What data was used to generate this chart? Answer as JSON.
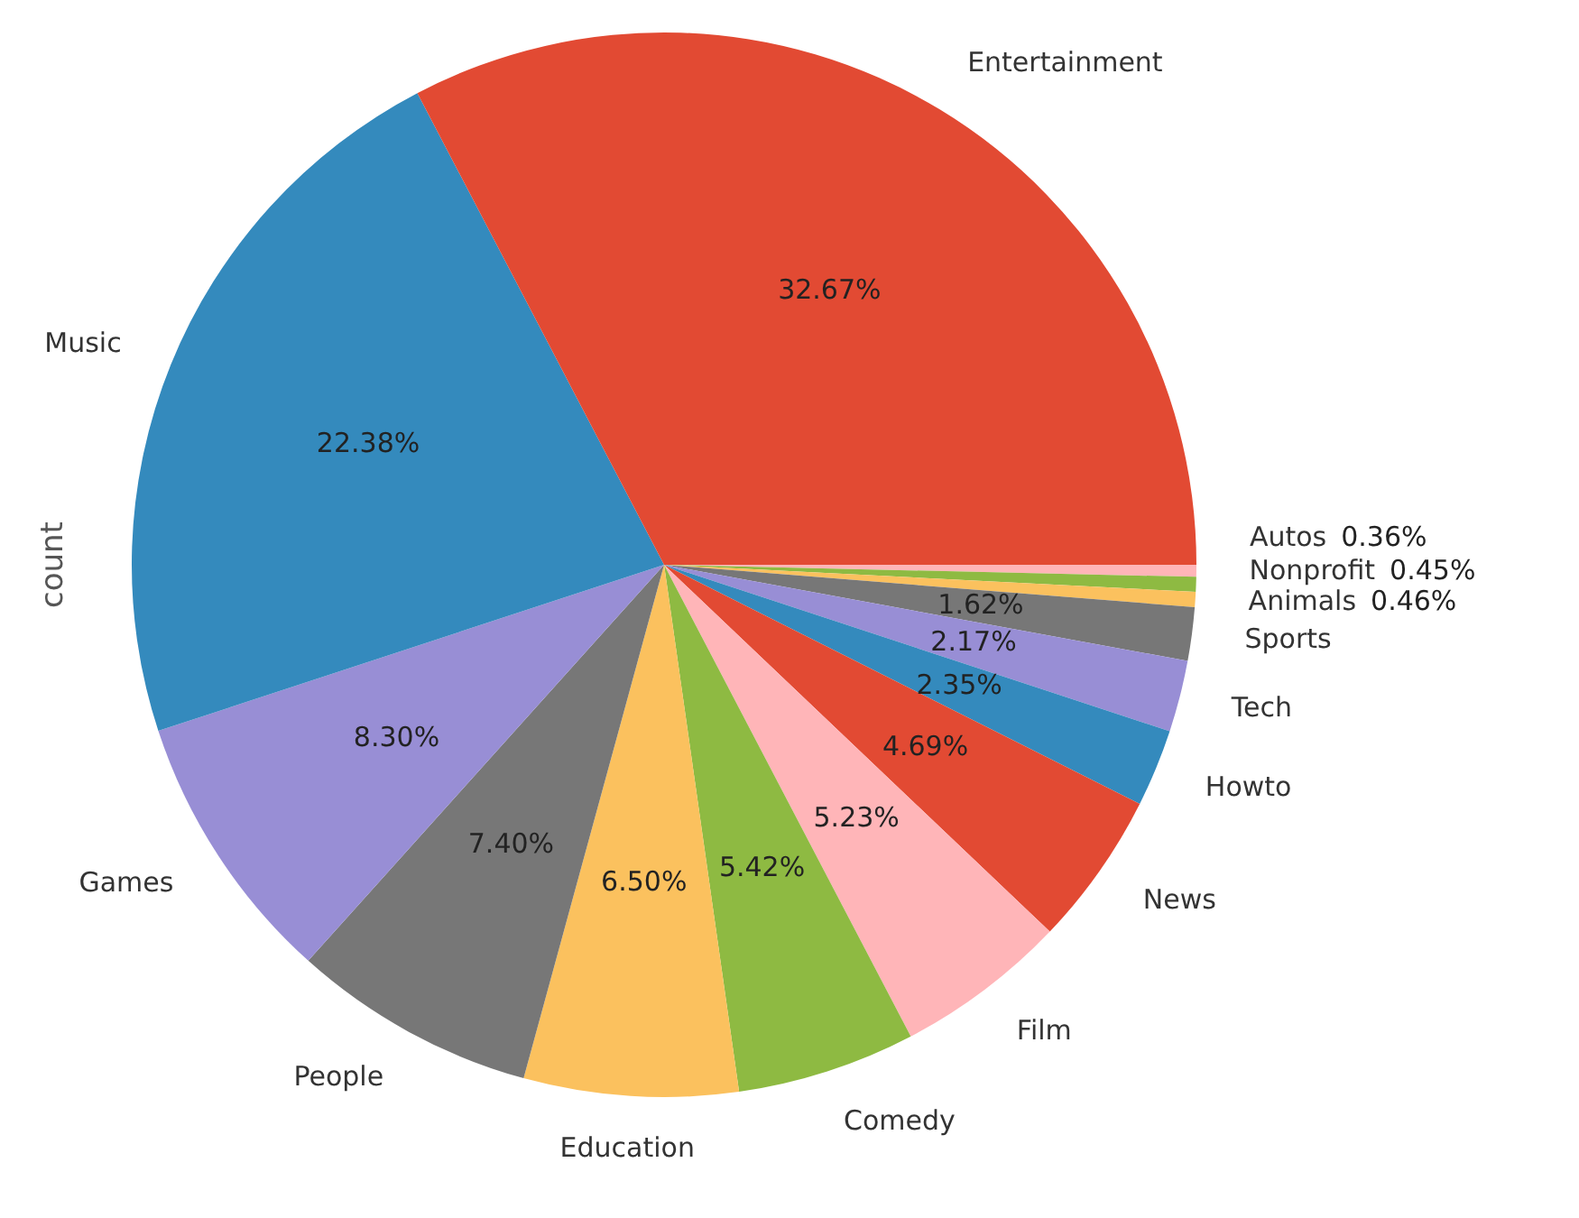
{
  "chart_data": {
    "type": "pie",
    "ylabel": "count",
    "categories": [
      "Entertainment",
      "Music",
      "Games",
      "People",
      "Education",
      "Comedy",
      "Film",
      "News",
      "Howto",
      "Tech",
      "Sports",
      "Animals",
      "Nonprofit",
      "Autos"
    ],
    "values": [
      32.67,
      22.38,
      8.3,
      7.4,
      6.5,
      5.42,
      5.23,
      4.69,
      2.35,
      2.17,
      1.62,
      0.46,
      0.45,
      0.36
    ],
    "value_labels": [
      "32.67%",
      "22.38%",
      "8.30%",
      "7.40%",
      "6.50%",
      "5.42%",
      "5.23%",
      "4.69%",
      "2.35%",
      "2.17%",
      "1.62%",
      "0.46%",
      "0.45%",
      "0.36%"
    ],
    "colors": [
      "#e24a33",
      "#348abd",
      "#988ed5",
      "#777777",
      "#fbc15e",
      "#8eba42",
      "#ffb5b8",
      "#e24a33",
      "#348abd",
      "#988ed5",
      "#777777",
      "#fbc15e",
      "#8eba42",
      "#ffb5b8"
    ],
    "legend": false
  }
}
